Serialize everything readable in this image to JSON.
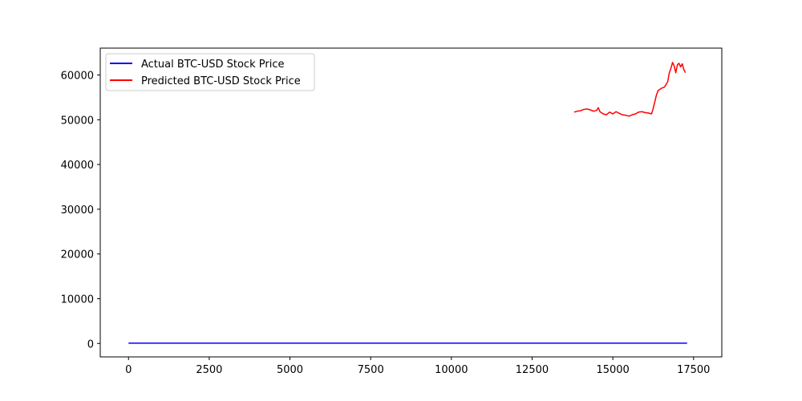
{
  "chart_data": {
    "type": "line",
    "title": "",
    "xlabel": "",
    "ylabel": "",
    "xlim": [
      -875,
      18375
    ],
    "ylim": [
      -3000,
      66000
    ],
    "xticks": [
      0,
      2500,
      5000,
      7500,
      10000,
      12500,
      15000,
      17500
    ],
    "yticks": [
      0,
      10000,
      20000,
      30000,
      40000,
      50000,
      60000
    ],
    "grid": false,
    "legend_position": "top-left",
    "series": [
      {
        "name": "Actual BTC-USD Stock Price",
        "color": "#0000ff",
        "x": [
          0,
          17300
        ],
        "y": [
          60,
          60
        ]
      },
      {
        "name": "Predicted BTC-USD Stock Price",
        "color": "#ff0000",
        "x": [
          13800,
          13900,
          14000,
          14100,
          14200,
          14300,
          14400,
          14500,
          14550,
          14600,
          14700,
          14800,
          14900,
          15000,
          15100,
          15200,
          15300,
          15400,
          15500,
          15600,
          15700,
          15800,
          15900,
          16000,
          16100,
          16200,
          16250,
          16300,
          16350,
          16400,
          16500,
          16600,
          16700,
          16750,
          16800,
          16850,
          16900,
          16950,
          17000,
          17050,
          17100,
          17150,
          17200,
          17250
        ],
        "y": [
          51700,
          51900,
          52000,
          52300,
          52400,
          52200,
          51900,
          52100,
          52700,
          51800,
          51300,
          51100,
          51700,
          51300,
          51800,
          51400,
          51100,
          51000,
          50800,
          51100,
          51300,
          51700,
          51800,
          51600,
          51500,
          51300,
          52500,
          54000,
          55500,
          56500,
          57000,
          57300,
          58500,
          60500,
          61500,
          62800,
          62000,
          60500,
          62300,
          62600,
          61800,
          62500,
          61200,
          60500
        ]
      }
    ]
  }
}
